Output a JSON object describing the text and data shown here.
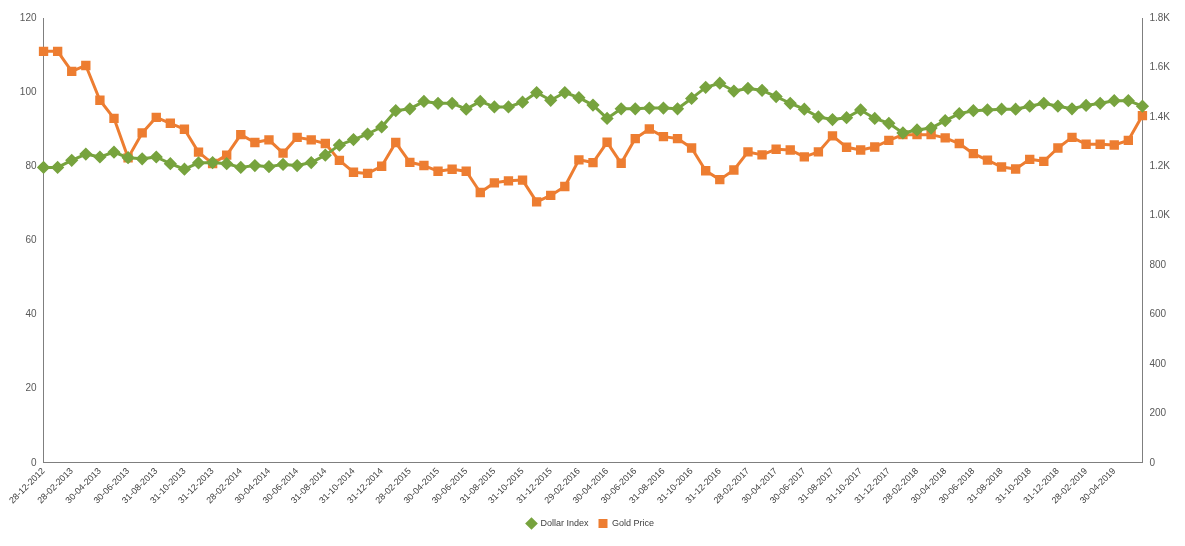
{
  "chart_data": {
    "type": "line",
    "categories": [
      "28-12-2012",
      null,
      "28-02-2013",
      null,
      "30-04-2013",
      null,
      "30-06-2013",
      null,
      "31-08-2013",
      null,
      "31-10-2013",
      null,
      "31-12-2013",
      null,
      "28-02-2014",
      null,
      "30-04-2014",
      null,
      "30-06-2014",
      null,
      "31-08-2014",
      null,
      "31-10-2014",
      null,
      "31-12-2014",
      null,
      "28-02-2015",
      null,
      "30-04-2015",
      null,
      "30-06-2015",
      null,
      "31-08-2015",
      null,
      "31-10-2015",
      null,
      "31-12-2015",
      null,
      "29-02-2016",
      null,
      "30-04-2016",
      null,
      "30-06-2016",
      null,
      "31-08-2016",
      null,
      "31-10-2016",
      null,
      "31-12-2016",
      null,
      "28-02-2017",
      null,
      "30-04-2017",
      null,
      "30-06-2017",
      null,
      "31-08-2017",
      null,
      "31-10-2017",
      null,
      "31-12-2017",
      null,
      "28-02-2018",
      null,
      "30-04-2018",
      null,
      "30-06-2018",
      null,
      "31-08-2018",
      null,
      "31-10-2018",
      null,
      "31-12-2018",
      null,
      "28-02-2019",
      null,
      "30-04-2019",
      null,
      null
    ],
    "series": [
      {
        "name": "Dollar Index",
        "color": "#77a33e",
        "marker": "diamond",
        "values": [
          79.7,
          79.7,
          81.6,
          83.3,
          82.5,
          83.8,
          82.3,
          82,
          82.5,
          80.7,
          79.2,
          80.9,
          81,
          80.7,
          79.7,
          80.2,
          79.9,
          80.5,
          80.2,
          81,
          83,
          85.7,
          87.2,
          88.7,
          90.6,
          95,
          95.5,
          97.5,
          97,
          97,
          95.4,
          97.5,
          96,
          96,
          97.3,
          99.9,
          97.8,
          99.9,
          98.5,
          96.5,
          92.9,
          95.5,
          95.5,
          95.7,
          95.7,
          95.5,
          98.3,
          101.3,
          102.4,
          100.3,
          101,
          100.5,
          98.8,
          97,
          95.4,
          93.3,
          92.6,
          93.1,
          95.2,
          92.9,
          91.6,
          89,
          89.8,
          90.3,
          92.3,
          94.2,
          95,
          95.2,
          95.4,
          95.4,
          96.2,
          97,
          96.2,
          95.5,
          96.4,
          97,
          97.7,
          97.7,
          96.2
        ]
      },
      {
        "name": "Gold Price",
        "color": "#ed7d31",
        "marker": "square",
        "axis": "y2",
        "values": [
          1665,
          1665,
          1584,
          1608,
          1467,
          1394,
          1234,
          1335,
          1398,
          1374,
          1350,
          1257,
          1211,
          1245,
          1328,
          1296,
          1307,
          1253,
          1317,
          1307,
          1292,
          1224,
          1176,
          1171,
          1200,
          1296,
          1216,
          1203,
          1180,
          1188,
          1180,
          1094,
          1133,
          1141,
          1144,
          1056,
          1082,
          1118,
          1226,
          1215,
          1297,
          1212,
          1312,
          1351,
          1320,
          1312,
          1274,
          1182,
          1146,
          1185,
          1258,
          1246,
          1269,
          1266,
          1238,
          1258,
          1323,
          1277,
          1266,
          1278,
          1305,
          1328,
          1328,
          1328,
          1315,
          1292,
          1251,
          1225,
          1197,
          1189,
          1228,
          1220,
          1274,
          1317,
          1289,
          1289,
          1286,
          1305,
          1405
        ]
      }
    ],
    "ylim": [
      0,
      120
    ],
    "yticks": [
      0,
      20,
      40,
      60,
      80,
      100,
      120
    ],
    "y2lim": [
      0,
      1800
    ],
    "y2ticks": [
      0,
      200,
      400,
      600,
      800,
      {
        "value": 1000,
        "label": "1.0K"
      },
      {
        "value": 1200,
        "label": "1.2K"
      },
      {
        "value": 1400,
        "label": "1.4K"
      },
      {
        "value": 1600,
        "label": "1.6K"
      },
      {
        "value": 1800,
        "label": "1.8K"
      }
    ],
    "grid": false,
    "legend": "bottom",
    "line_style": "solid"
  }
}
